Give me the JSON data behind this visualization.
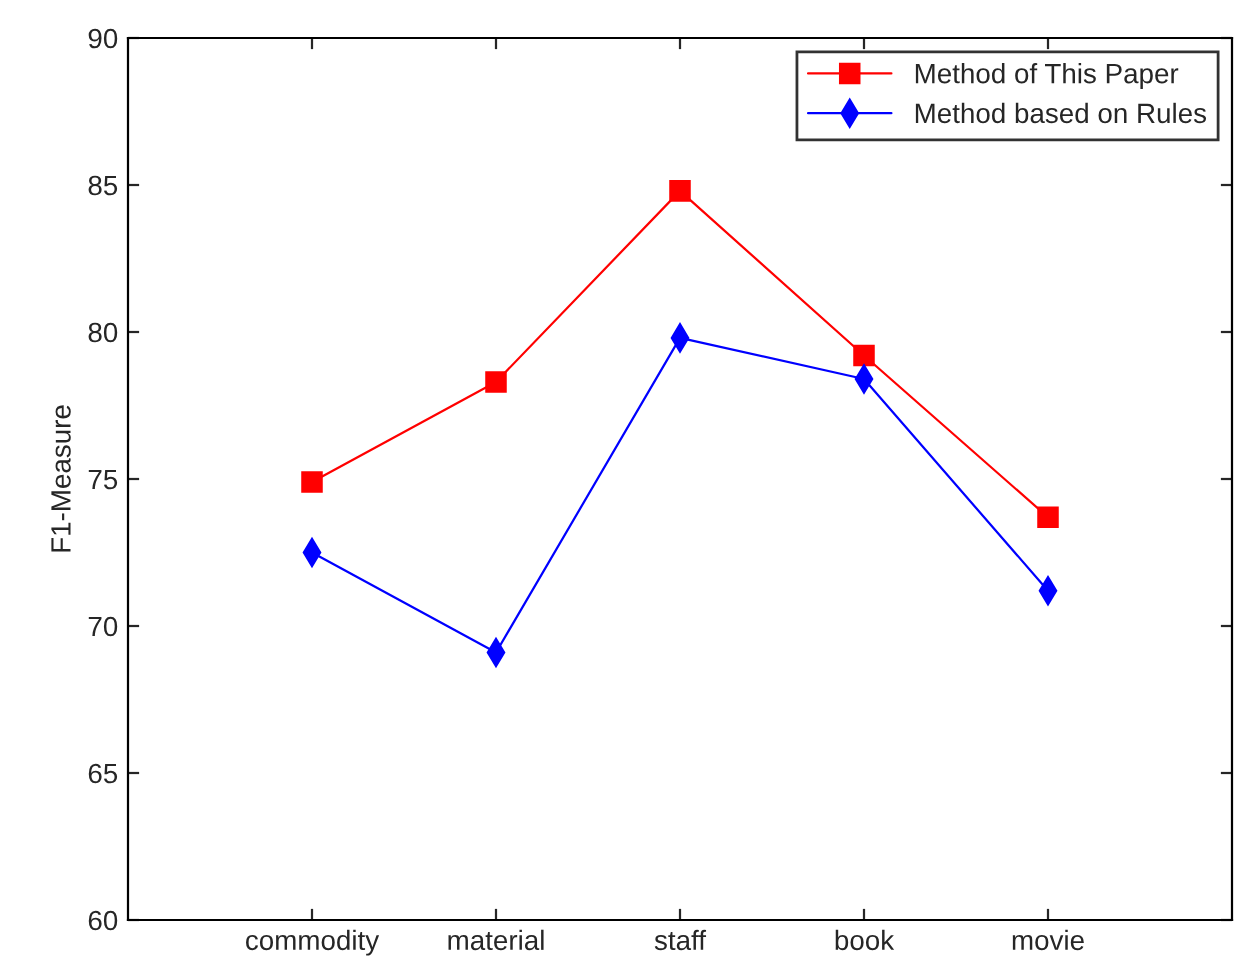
{
  "chart_data": {
    "type": "line",
    "ylabel": "F1-Measure",
    "categories": [
      "commodity",
      "material",
      "staff",
      "book",
      "movie"
    ],
    "series": [
      {
        "name": "Method of This Paper",
        "color": "#ff0000",
        "marker": "square",
        "values": [
          74.9,
          78.3,
          84.8,
          79.2,
          73.7
        ]
      },
      {
        "name": "Method based on Rules",
        "color": "#0000ff",
        "marker": "diamond",
        "values": [
          72.5,
          69.1,
          79.8,
          78.4,
          71.2
        ]
      }
    ],
    "ylim": [
      60,
      90
    ],
    "yticks": [
      60,
      65,
      70,
      75,
      80,
      85,
      90
    ],
    "grid": false,
    "legend": "top right",
    "line_style": "solid"
  }
}
